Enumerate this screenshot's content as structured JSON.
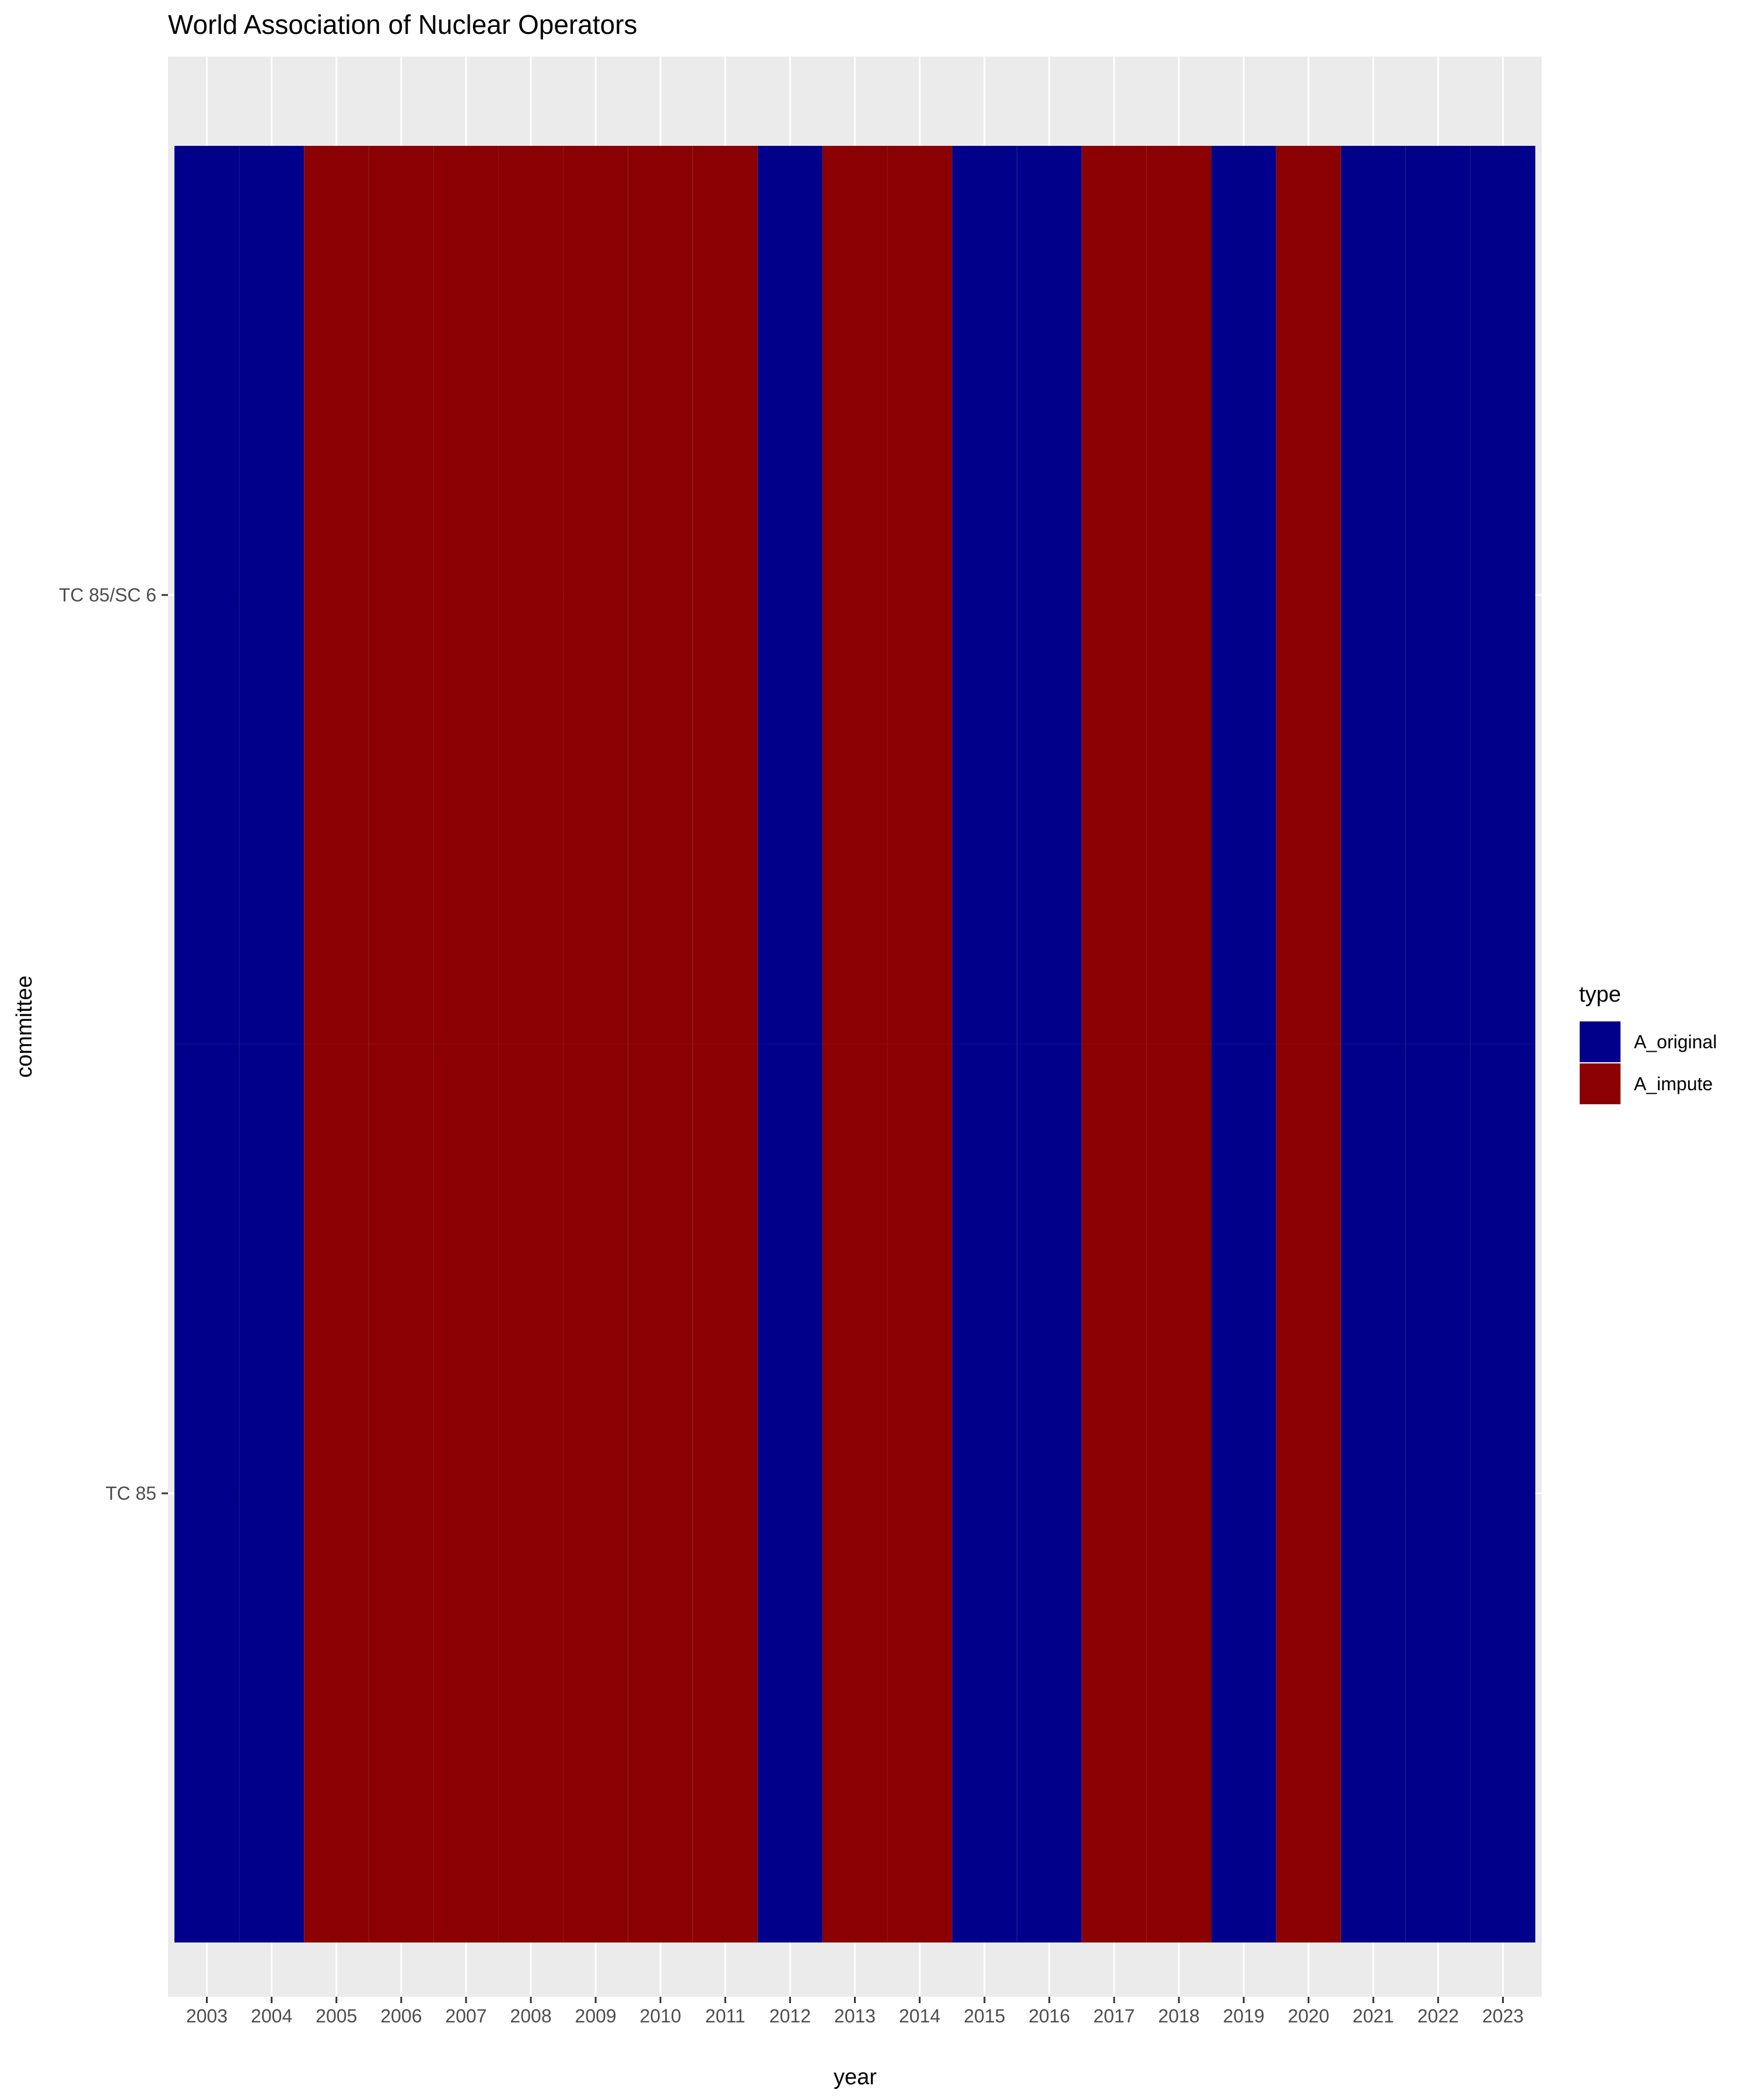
{
  "chart_data": {
    "type": "heatmap",
    "title": "World Association of Nuclear Operators",
    "xlabel": "year",
    "ylabel": "committee",
    "x": [
      "2003",
      "2004",
      "2005",
      "2006",
      "2007",
      "2008",
      "2009",
      "2010",
      "2011",
      "2012",
      "2013",
      "2014",
      "2015",
      "2016",
      "2017",
      "2018",
      "2019",
      "2020",
      "2021",
      "2022",
      "2023"
    ],
    "y": [
      "TC 85/SC 6",
      "TC 85"
    ],
    "legend": {
      "title": "type",
      "position": "right",
      "entries": [
        {
          "label": "A_original",
          "color": "#00008B"
        },
        {
          "label": "A_impute",
          "color": "#8B0000"
        }
      ]
    },
    "cells": [
      [
        "A_original",
        "A_original",
        "A_impute",
        "A_impute",
        "A_impute",
        "A_impute",
        "A_impute",
        "A_impute",
        "A_impute",
        "A_original",
        "A_impute",
        "A_impute",
        "A_original",
        "A_original",
        "A_impute",
        "A_impute",
        "A_original",
        "A_impute",
        "A_original",
        "A_original",
        "A_original"
      ],
      [
        "A_original",
        "A_original",
        "A_impute",
        "A_impute",
        "A_impute",
        "A_impute",
        "A_impute",
        "A_impute",
        "A_impute",
        "A_original",
        "A_impute",
        "A_impute",
        "A_original",
        "A_original",
        "A_impute",
        "A_impute",
        "A_original",
        "A_impute",
        "A_original",
        "A_original",
        "A_original"
      ]
    ],
    "grid": true,
    "colors": {
      "panel_background": "#EBEBEB",
      "grid_line": "#FFFFFF",
      "A_original": "#00008B",
      "A_impute": "#8B0000"
    }
  }
}
